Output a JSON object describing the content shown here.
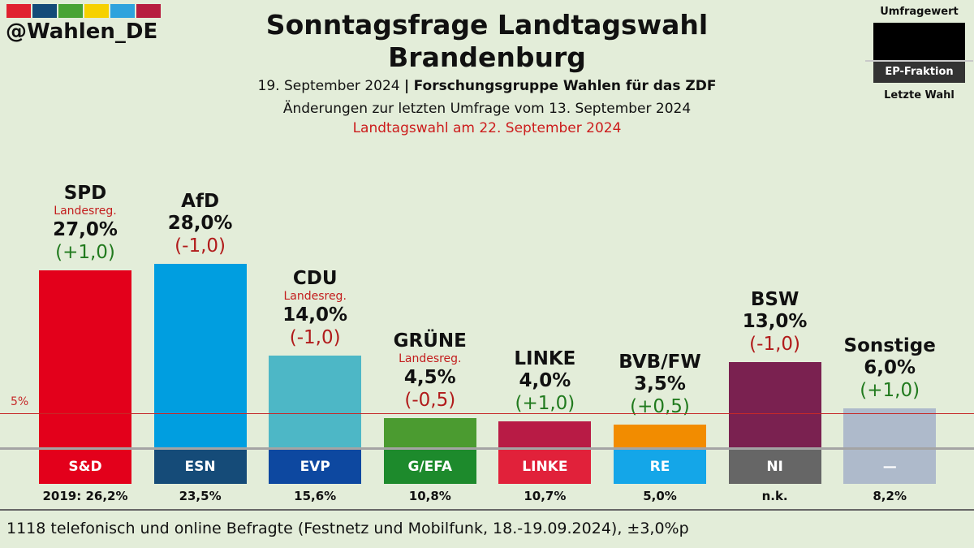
{
  "handle": "@Wahlen_DE",
  "header": {
    "title_line1": "Sonntagsfrage Landtagswahl",
    "title_line2": "Brandenburg",
    "date": "19. September 2024",
    "institute": "Forschungsgruppe Wahlen für das ZDF",
    "change_note": "Änderungen zur letzten Umfrage vom 13. September 2024",
    "election_note": "Landtagswahl am 22. September 2024"
  },
  "legend": {
    "top": "Umfragewert",
    "middle": "EP-Fraktion",
    "bottom": "Letzte Wahl"
  },
  "stripe_colors": [
    "#e0212f",
    "#134b78",
    "#48a334",
    "#f6d100",
    "#2ea3dd",
    "#b71e3f"
  ],
  "threshold_label": "5%",
  "chart_data": {
    "type": "bar",
    "title": "Sonntagsfrage Landtagswahl Brandenburg",
    "ylabel": "Umfragewert (%)",
    "ylim": [
      0,
      28
    ],
    "threshold": 5,
    "categories": [
      "SPD",
      "AfD",
      "CDU",
      "GRÜNE",
      "LINKE",
      "BVB/FW",
      "BSW",
      "Sonstige"
    ],
    "values": [
      27.0,
      28.0,
      14.0,
      4.5,
      4.0,
      3.5,
      13.0,
      6.0
    ],
    "parties": [
      {
        "name": "SPD",
        "note": "Landesreg.",
        "value": 27.0,
        "value_label": "27,0%",
        "change": "(+1,0)",
        "change_sign": "pos",
        "color": "#e3001b",
        "ep_group": "S&D",
        "ep_color": "#e3001b",
        "last": "2019: 26,2%"
      },
      {
        "name": "AfD",
        "note": "",
        "value": 28.0,
        "value_label": "28,0%",
        "change": "(-1,0)",
        "change_sign": "neg",
        "color": "#009ee0",
        "ep_group": "ESN",
        "ep_color": "#154b78",
        "last": "23,5%"
      },
      {
        "name": "CDU",
        "note": "Landesreg.",
        "value": 14.0,
        "value_label": "14,0%",
        "change": "(-1,0)",
        "change_sign": "neg",
        "color": "#4db7c6",
        "ep_group": "EVP",
        "ep_color": "#0d48a0",
        "last": "15,6%"
      },
      {
        "name": "GRÜNE",
        "note": "Landesreg.",
        "value": 4.5,
        "value_label": "4,5%",
        "change": "(-0,5)",
        "change_sign": "neg",
        "color": "#4b9b30",
        "ep_group": "G/EFA",
        "ep_color": "#1d8a2c",
        "last": "10,8%"
      },
      {
        "name": "LINKE",
        "note": "",
        "value": 4.0,
        "value_label": "4,0%",
        "change": "(+1,0)",
        "change_sign": "pos",
        "color": "#b81b45",
        "ep_group": "LINKE",
        "ep_color": "#e1213a",
        "last": "10,7%"
      },
      {
        "name": "BVB/FW",
        "note": "",
        "value": 3.5,
        "value_label": "3,5%",
        "change": "(+0,5)",
        "change_sign": "pos",
        "color": "#f28c00",
        "ep_group": "RE",
        "ep_color": "#14a6e8",
        "last": "5,0%"
      },
      {
        "name": "BSW",
        "note": "",
        "value": 13.0,
        "value_label": "13,0%",
        "change": "(-1,0)",
        "change_sign": "neg",
        "color": "#7a2150",
        "ep_group": "NI",
        "ep_color": "#666666",
        "last": "n.k."
      },
      {
        "name": "Sonstige",
        "note": "",
        "value": 6.0,
        "value_label": "6,0%",
        "change": "(+1,0)",
        "change_sign": "pos",
        "color": "#aebacb",
        "ep_group": "—",
        "ep_color": "#aebacb",
        "last": "8,2%"
      }
    ]
  },
  "footer": "1118 telefonisch und online Befragte (Festnetz und Mobilfunk, 18.-19.09.2024), ±3,0%p"
}
